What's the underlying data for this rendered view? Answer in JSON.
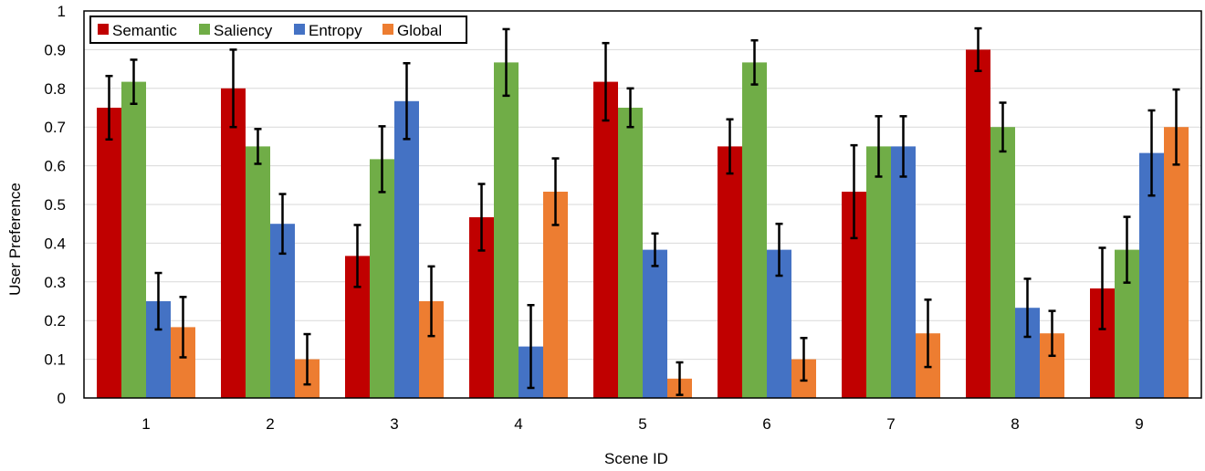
{
  "chart_data": {
    "type": "bar",
    "xlabel": "Scene ID",
    "ylabel": "User Preference",
    "ylim": [
      0,
      1
    ],
    "yticks": [
      "0",
      "0.1",
      "0.2",
      "0.3",
      "0.4",
      "0.5",
      "0.6",
      "0.7",
      "0.8",
      "0.9",
      "1"
    ],
    "grid": true,
    "legend_position": "top-left",
    "categories": [
      "1",
      "2",
      "3",
      "4",
      "5",
      "6",
      "7",
      "8",
      "9"
    ],
    "series": [
      {
        "name": "Semantic",
        "color": "#c00000",
        "values": [
          0.75,
          0.8,
          0.367,
          0.467,
          0.817,
          0.65,
          0.533,
          0.9,
          0.283
        ],
        "errors": [
          0.082,
          0.1,
          0.08,
          0.086,
          0.1,
          0.07,
          0.12,
          0.055,
          0.105
        ]
      },
      {
        "name": "Saliency",
        "color": "#70ad47",
        "values": [
          0.817,
          0.65,
          0.617,
          0.867,
          0.75,
          0.867,
          0.65,
          0.7,
          0.383
        ],
        "errors": [
          0.057,
          0.045,
          0.085,
          0.086,
          0.05,
          0.057,
          0.078,
          0.063,
          0.085
        ]
      },
      {
        "name": "Entropy",
        "color": "#4472c4",
        "values": [
          0.25,
          0.45,
          0.767,
          0.133,
          0.383,
          0.383,
          0.65,
          0.233,
          0.633
        ],
        "errors": [
          0.073,
          0.077,
          0.098,
          0.107,
          0.042,
          0.067,
          0.078,
          0.075,
          0.11
        ]
      },
      {
        "name": "Global",
        "color": "#ed7d31",
        "values": [
          0.183,
          0.1,
          0.25,
          0.533,
          0.05,
          0.1,
          0.167,
          0.167,
          0.7
        ],
        "errors": [
          0.078,
          0.065,
          0.09,
          0.086,
          0.042,
          0.055,
          0.087,
          0.058,
          0.097
        ]
      }
    ]
  }
}
